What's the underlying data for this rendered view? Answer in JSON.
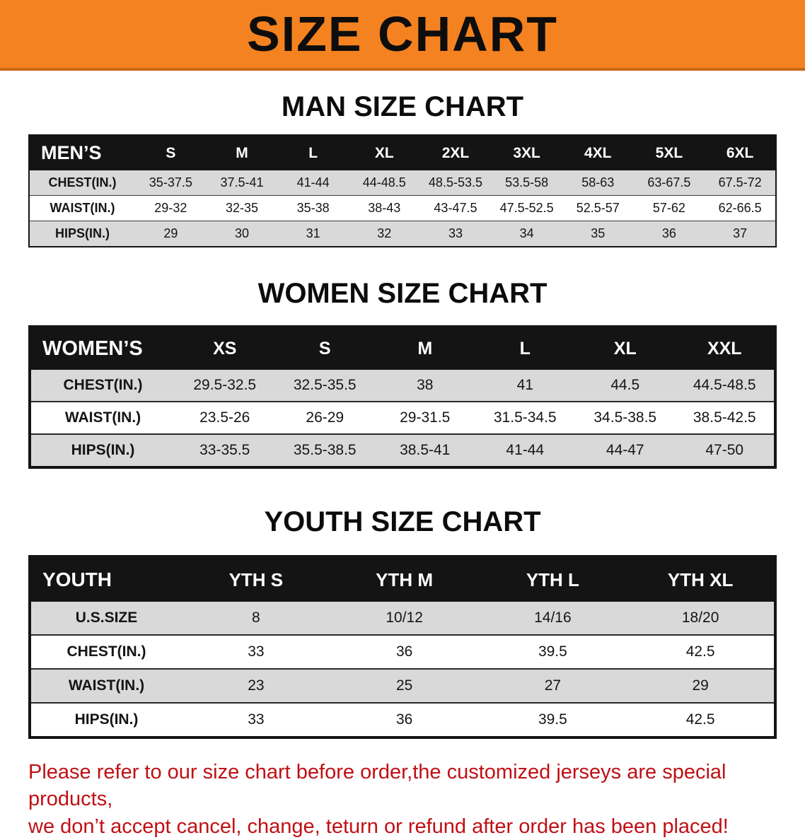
{
  "banner": {
    "title": "SIZE CHART"
  },
  "colors": {
    "banner_bg": "#F58220",
    "banner_text": "#0D0D0D",
    "table_header_bg": "#141414",
    "table_header_text": "#FFFFFF",
    "row_stripe": "#D9D9D9",
    "disclaimer_text": "#C01015"
  },
  "sections": [
    {
      "id": "men",
      "heading": "MAN SIZE CHART",
      "table": {
        "header": [
          "MEN’S",
          "S",
          "M",
          "L",
          "XL",
          "2XL",
          "3XL",
          "4XL",
          "5XL",
          "6XL"
        ],
        "rows": [
          [
            "CHEST(IN.)",
            "35-37.5",
            "37.5-41",
            "41-44",
            "44-48.5",
            "48.5-53.5",
            "53.5-58",
            "58-63",
            "63-67.5",
            "67.5-72"
          ],
          [
            "WAIST(IN.)",
            "29-32",
            "32-35",
            "35-38",
            "38-43",
            "43-47.5",
            "47.5-52.5",
            "52.5-57",
            "57-62",
            "62-66.5"
          ],
          [
            "HIPS(IN.)",
            "29",
            "30",
            "31",
            "32",
            "33",
            "34",
            "35",
            "36",
            "37"
          ]
        ]
      }
    },
    {
      "id": "women",
      "heading": "WOMEN SIZE CHART",
      "table": {
        "header": [
          "WOMEN’S",
          "XS",
          "S",
          "M",
          "L",
          "XL",
          "XXL"
        ],
        "rows": [
          [
            "CHEST(IN.)",
            "29.5-32.5",
            "32.5-35.5",
            "38",
            "41",
            "44.5",
            "44.5-48.5"
          ],
          [
            "WAIST(IN.)",
            "23.5-26",
            "26-29",
            "29-31.5",
            "31.5-34.5",
            "34.5-38.5",
            "38.5-42.5"
          ],
          [
            "HIPS(IN.)",
            "33-35.5",
            "35.5-38.5",
            "38.5-41",
            "41-44",
            "44-47",
            "47-50"
          ]
        ]
      }
    },
    {
      "id": "youth",
      "heading": "YOUTH SIZE CHART",
      "table": {
        "header": [
          "YOUTH",
          "YTH S",
          "YTH M",
          "YTH L",
          "YTH XL"
        ],
        "rows": [
          [
            "U.S.SIZE",
            "8",
            "10/12",
            "14/16",
            "18/20"
          ],
          [
            "CHEST(IN.)",
            "33",
            "36",
            "39.5",
            "42.5"
          ],
          [
            "WAIST(IN.)",
            "23",
            "25",
            "27",
            "29"
          ],
          [
            "HIPS(IN.)",
            "33",
            "36",
            "39.5",
            "42.5"
          ]
        ]
      }
    }
  ],
  "disclaimer": {
    "line1": "Please refer to our size chart before order,the customized jerseys are special products,",
    "line2": "we don’t accept cancel, change, teturn or refund after order has been placed!"
  }
}
